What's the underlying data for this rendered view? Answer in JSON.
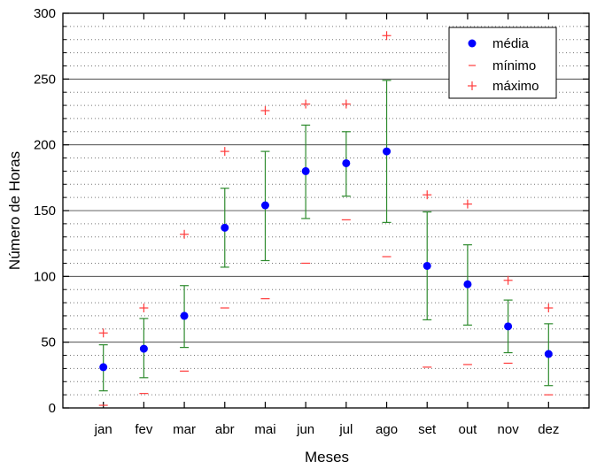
{
  "chart_data": {
    "type": "scatter",
    "xlabel": "Meses",
    "ylabel": "Número de Horas",
    "ylim": [
      0,
      300
    ],
    "yticks": [
      0,
      50,
      100,
      150,
      200,
      250,
      300
    ],
    "grid": "horizontal major solid, minor dotted",
    "legend_position": "top-right",
    "categories": [
      "jan",
      "fev",
      "mar",
      "abr",
      "mai",
      "jun",
      "jul",
      "ago",
      "set",
      "out",
      "nov",
      "dez"
    ],
    "series": [
      {
        "name": "média",
        "marker": "filled-circle",
        "color": "#0000ff",
        "values": [
          31,
          45,
          70,
          137,
          154,
          180,
          186,
          195,
          108,
          94,
          62,
          41
        ],
        "error_low": [
          13,
          23,
          46,
          107,
          112,
          144,
          161,
          141,
          67,
          63,
          42,
          17
        ],
        "error_high": [
          48,
          68,
          93,
          167,
          195,
          215,
          210,
          249,
          149,
          124,
          82,
          64
        ],
        "error_color": "#2e8b2e"
      },
      {
        "name": "mínimo",
        "marker": "dash",
        "color": "#ff3b3b",
        "values": [
          2,
          11,
          28,
          76,
          83,
          110,
          143,
          115,
          31,
          33,
          34,
          10
        ]
      },
      {
        "name": "máximo",
        "marker": "plus",
        "color": "#ff3b3b",
        "values": [
          57,
          76,
          132,
          195,
          226,
          231,
          231,
          283,
          162,
          155,
          97,
          76
        ]
      }
    ]
  }
}
